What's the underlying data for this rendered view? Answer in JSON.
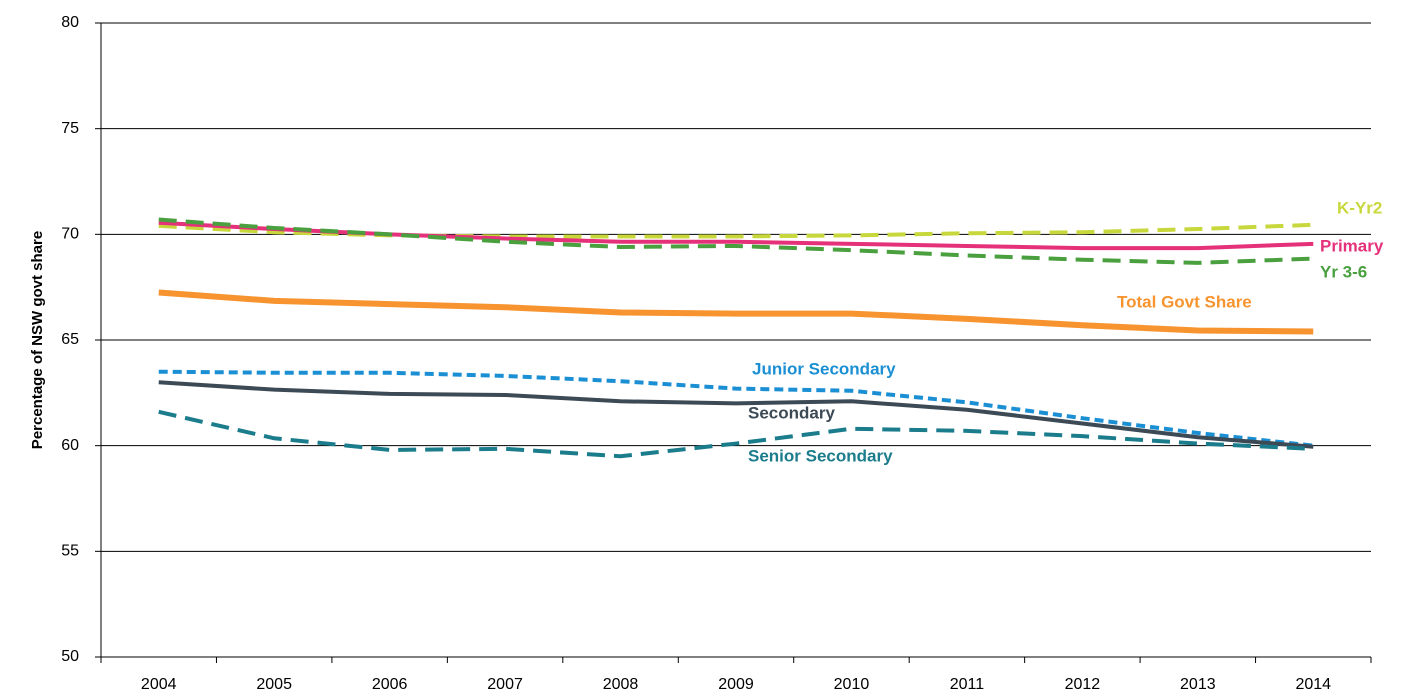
{
  "chart_data": {
    "type": "line",
    "y_label": "Percentage of NSW  govt share",
    "categories": [
      "2004",
      "2005",
      "2006",
      "2007",
      "2008",
      "2009",
      "2010",
      "2011",
      "2012",
      "2013",
      "2014"
    ],
    "ylim": [
      50,
      80
    ],
    "yticks": [
      50,
      55,
      60,
      65,
      70,
      75,
      80
    ],
    "grid": true,
    "series": [
      {
        "name": "K-Yr2",
        "color": "#c8d83c",
        "line_style": "dashed",
        "values": [
          70.4,
          70.1,
          69.95,
          69.9,
          69.9,
          69.9,
          69.95,
          70.05,
          70.1,
          70.25,
          70.45
        ]
      },
      {
        "name": "Primary",
        "color": "#e5317a",
        "line_style": "solid",
        "values": [
          70.55,
          70.25,
          70.0,
          69.8,
          69.65,
          69.65,
          69.55,
          69.45,
          69.35,
          69.35,
          69.55
        ]
      },
      {
        "name": "Yr 3-6",
        "color": "#4aa03f",
        "line_style": "dashed",
        "values": [
          70.7,
          70.3,
          70.0,
          69.65,
          69.4,
          69.45,
          69.25,
          69.0,
          68.8,
          68.65,
          68.85
        ]
      },
      {
        "name": "Total Govt Share",
        "color": "#f7942f",
        "line_style": "solid",
        "values": [
          67.25,
          66.85,
          66.7,
          66.55,
          66.3,
          66.25,
          66.25,
          66.0,
          65.7,
          65.45,
          65.4
        ]
      },
      {
        "name": "Junior Secondary",
        "color": "#1b8fd3",
        "line_style": "short-dashed",
        "values": [
          63.5,
          63.45,
          63.45,
          63.3,
          63.05,
          62.7,
          62.6,
          62.05,
          61.3,
          60.6,
          60.0
        ]
      },
      {
        "name": "Secondary",
        "color": "#3c4a55",
        "line_style": "solid",
        "values": [
          63.0,
          62.65,
          62.45,
          62.4,
          62.1,
          62.0,
          62.1,
          61.7,
          61.05,
          60.4,
          59.95
        ]
      },
      {
        "name": "Senior Secondary",
        "color": "#1b7c8c",
        "line_style": "dashed",
        "values": [
          61.6,
          60.35,
          59.8,
          59.85,
          59.5,
          60.1,
          60.8,
          60.7,
          60.45,
          60.1,
          59.85
        ]
      }
    ]
  }
}
